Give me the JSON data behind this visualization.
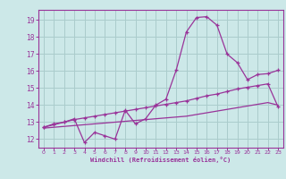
{
  "x": [
    0,
    1,
    2,
    3,
    4,
    5,
    6,
    7,
    8,
    9,
    10,
    11,
    12,
    13,
    14,
    15,
    16,
    17,
    18,
    19,
    20,
    21,
    22,
    23
  ],
  "y_curve": [
    12.7,
    12.9,
    13.0,
    13.2,
    11.8,
    12.4,
    12.2,
    12.0,
    13.7,
    12.9,
    13.2,
    14.0,
    14.35,
    16.05,
    18.3,
    19.15,
    19.2,
    18.7,
    17.0,
    16.5,
    15.5,
    15.8,
    15.85,
    16.05
  ],
  "y_line1": [
    12.7,
    12.85,
    13.0,
    13.15,
    13.25,
    13.35,
    13.45,
    13.55,
    13.65,
    13.75,
    13.85,
    13.95,
    14.05,
    14.15,
    14.25,
    14.4,
    14.55,
    14.65,
    14.8,
    14.95,
    15.05,
    15.15,
    15.25,
    13.9
  ],
  "y_line2": [
    12.65,
    12.7,
    12.75,
    12.8,
    12.85,
    12.9,
    12.95,
    13.0,
    13.05,
    13.1,
    13.15,
    13.2,
    13.25,
    13.3,
    13.35,
    13.45,
    13.55,
    13.65,
    13.75,
    13.85,
    13.95,
    14.05,
    14.15,
    14.0
  ],
  "line_color": "#993399",
  "bg_color": "#cce8e8",
  "grid_color": "#aacccc",
  "xlabel": "Windchill (Refroidissement éolien,°C)",
  "ylim": [
    11.5,
    19.6
  ],
  "xlim": [
    -0.5,
    23.5
  ],
  "yticks": [
    12,
    13,
    14,
    15,
    16,
    17,
    18,
    19
  ],
  "xticks": [
    0,
    1,
    2,
    3,
    4,
    5,
    6,
    7,
    8,
    9,
    10,
    11,
    12,
    13,
    14,
    15,
    16,
    17,
    18,
    19,
    20,
    21,
    22,
    23
  ]
}
